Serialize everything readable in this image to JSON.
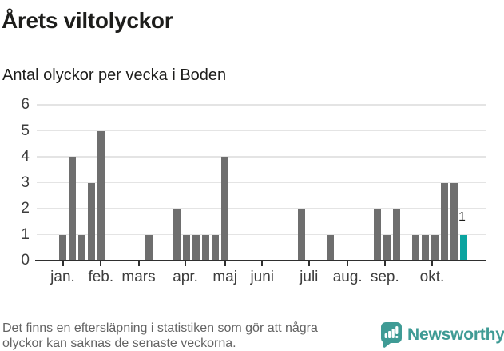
{
  "header": {
    "title": "Årets viltolyckor",
    "subtitle": "Antal olyckor per vecka i Boden"
  },
  "footer": {
    "note": "Det finns en eftersläpning i statistiken som gör att några\nolyckor kan saknas de senaste veckorna.",
    "brand": "Newsworthy"
  },
  "chart_data": {
    "type": "bar",
    "title": "Årets viltolyckor",
    "subtitle": "Antal olyckor per vecka i Boden",
    "x_unit": "week",
    "values": [
      1,
      4,
      1,
      3,
      5,
      0,
      0,
      0,
      0,
      1,
      0,
      0,
      2,
      1,
      1,
      1,
      1,
      4,
      0,
      0,
      0,
      0,
      0,
      0,
      0,
      2,
      0,
      0,
      1,
      0,
      0,
      0,
      0,
      2,
      1,
      2,
      0,
      1,
      1,
      1,
      3,
      3,
      1
    ],
    "highlight": {
      "index": 42,
      "value": 1,
      "label": "1",
      "color": "#0ba4a0"
    },
    "bar_color": "#6e6e6e",
    "ylim": [
      0,
      6
    ],
    "yticks": [
      0,
      1,
      2,
      3,
      4,
      5,
      6
    ],
    "grid": true,
    "legend": "none",
    "month_ticks": [
      {
        "label": "jan.",
        "week_index": 0.0
      },
      {
        "label": "feb.",
        "week_index": 4.0
      },
      {
        "label": "mars",
        "week_index": 7.95
      },
      {
        "label": "apr.",
        "week_index": 12.85
      },
      {
        "label": "maj",
        "week_index": 17.0
      },
      {
        "label": "juni",
        "week_index": 20.9
      },
      {
        "label": "juli",
        "week_index": 25.8
      },
      {
        "label": "aug.",
        "week_index": 29.85
      },
      {
        "label": "sep.",
        "week_index": 33.75
      },
      {
        "label": "okt.",
        "week_index": 38.7
      }
    ],
    "colors": {
      "grid": "#e4e4e4",
      "axis": "#2f2f2f",
      "tick_label": "#3d3d3d",
      "annotation": "#1d1d1b"
    }
  }
}
